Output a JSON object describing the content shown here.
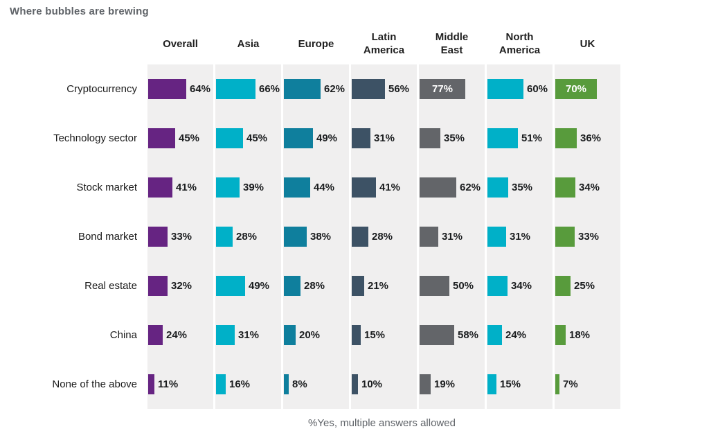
{
  "title": "Where bubbles are brewing",
  "footnote": "%Yes, multiple answers allowed",
  "colors": {
    "band_background": "#f0efef",
    "title_text": "#5f6368",
    "label_text": "#1a1a1a",
    "value_text": "#1b1d1f",
    "inside_value_text": "#ffffff"
  },
  "chart_data": {
    "type": "bar",
    "orientation": "horizontal",
    "unit": "%",
    "value_axis_max": 100,
    "inside_label_threshold": 70,
    "grid": false,
    "legend": "none",
    "title": "Where bubbles are brewing",
    "note": "%Yes, multiple answers allowed",
    "categories": [
      "Cryptocurrency",
      "Technology sector",
      "Stock market",
      "Bond market",
      "Real estate",
      "China",
      "None of the above"
    ],
    "series": [
      {
        "name": "Overall",
        "color": "#662482",
        "values": [
          64,
          45,
          41,
          33,
          32,
          24,
          11
        ]
      },
      {
        "name": "Asia",
        "color": "#00b0c8",
        "values": [
          66,
          45,
          39,
          28,
          49,
          31,
          16
        ]
      },
      {
        "name": "Europe",
        "color": "#0f7f9d",
        "values": [
          62,
          49,
          44,
          38,
          28,
          20,
          8
        ]
      },
      {
        "name": "Latin America",
        "color": "#3d5265",
        "values": [
          56,
          31,
          41,
          28,
          21,
          15,
          10
        ]
      },
      {
        "name": "Middle East",
        "color": "#636569",
        "values": [
          77,
          35,
          62,
          31,
          50,
          58,
          19
        ]
      },
      {
        "name": "North America",
        "color": "#00b0c8",
        "values": [
          60,
          51,
          35,
          31,
          34,
          24,
          15
        ]
      },
      {
        "name": "UK",
        "color": "#589b3c",
        "values": [
          70,
          36,
          34,
          33,
          25,
          18,
          7
        ]
      }
    ]
  }
}
